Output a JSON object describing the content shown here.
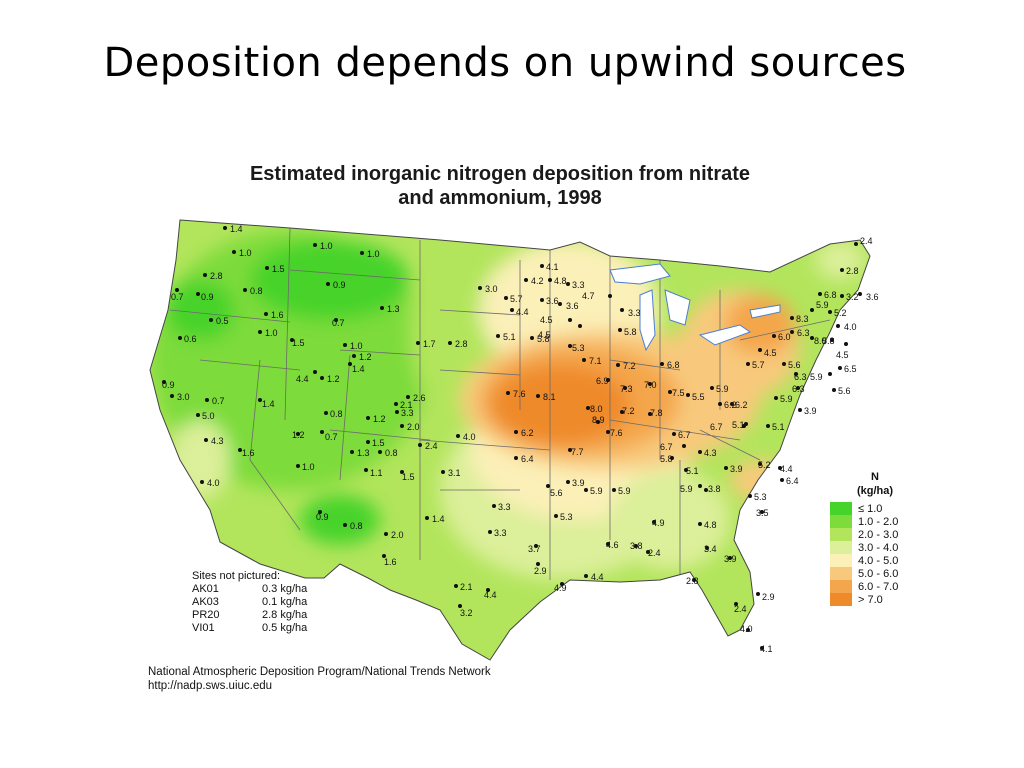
{
  "slide": {
    "title": "Deposition depends on upwind sources"
  },
  "map": {
    "title_line1": "Estimated inorganic nitrogen deposition from nitrate",
    "title_line2": "and ammonium, 1998"
  },
  "legend": {
    "title_line1": "N",
    "title_line2": "(kg/ha)",
    "items": [
      {
        "label": "≤ 1.0",
        "color": "#46d32a"
      },
      {
        "label": "1.0 - 2.0",
        "color": "#7ddb3a"
      },
      {
        "label": "2.0 - 3.0",
        "color": "#b2e55c"
      },
      {
        "label": "3.0 - 4.0",
        "color": "#dcef9a"
      },
      {
        "label": "4.0 - 5.0",
        "color": "#fbf0b8"
      },
      {
        "label": "5.0 - 6.0",
        "color": "#f8c97c"
      },
      {
        "label": "6.0 - 7.0",
        "color": "#f4a64c"
      },
      {
        "label": "> 7.0",
        "color": "#ef8a2a"
      }
    ]
  },
  "not_pictured": {
    "title": "Sites not pictured:",
    "sites": [
      {
        "site": "AK01",
        "value": "0.3 kg/ha"
      },
      {
        "site": "AK03",
        "value": "0.1 kg/ha"
      },
      {
        "site": "PR20",
        "value": "2.8 kg/ha"
      },
      {
        "site": "VI01",
        "value": "0.5 kg/ha"
      }
    ]
  },
  "credit": {
    "line1": "National Atmospheric Deposition Program/National Trends Network",
    "line2": "http://nadp.sws.uiuc.edu"
  },
  "site_labels": [
    "1.4",
    "1.0",
    "1.5",
    "1.0",
    "1.0",
    "2.8",
    "0.8",
    "0.9",
    "0.7",
    "0.9",
    "0.5",
    "1.6",
    "1.0",
    "1.3",
    "0.7",
    "0.6",
    "1.5",
    "1.0",
    "1.2",
    "1.4",
    "1.2",
    "4.4",
    "1.7",
    "2.8",
    "3.0",
    "0.9",
    "3.0",
    "0.7",
    "1.4",
    "5.0",
    "0.8",
    "1.2",
    "2.1",
    "3.3",
    "2.6",
    "2.0",
    "4.3",
    "1.2",
    "0.7",
    "1.5",
    "1.3",
    "0.8",
    "2.4",
    "4.0",
    "1.6",
    "1.0",
    "1.1",
    "1.5",
    "3.1",
    "4.0",
    "0.9",
    "0.8",
    "2.0",
    "1.4",
    "1.6",
    "5.1",
    "5.8",
    "7.6",
    "8.1",
    "6.2",
    "6.4",
    "5.7",
    "4.4",
    "4.2",
    "4.8",
    "4.1",
    "3.3",
    "3.6",
    "3.6",
    "4.7",
    "4.5",
    "3.3",
    "4.5",
    "5.8",
    "5.3",
    "7.1",
    "7.2",
    "6.8",
    "6.9",
    "7.3",
    "7.0",
    "7.5",
    "5.5",
    "5.9",
    "8.0",
    "8.9",
    "7.2",
    "7.8",
    "6.2",
    "7.6",
    "7.7",
    "6.7",
    "6.7",
    "5.8",
    "4.3",
    "5.9",
    "3.9",
    "5.1",
    "5.6",
    "3.9",
    "5.9",
    "5.3",
    "3.3",
    "3.3",
    "3.7",
    "2.9",
    "4.9",
    "4.8",
    "4.6",
    "3.8",
    "2.4",
    "4.4",
    "4.9",
    "3.4",
    "3.9",
    "2.8",
    "2.9",
    "2.4",
    "4.0",
    "4.1",
    "2.1",
    "4.4",
    "3.2",
    "5.1",
    "5.2",
    "4.4",
    "6.4",
    "5.9",
    "3.8",
    "5.3",
    "3.5",
    "6.7",
    "6.2",
    "5.1",
    "3.9",
    "5.9",
    "5.7",
    "4.5",
    "5.6",
    "6.3",
    "6.3",
    "6.0",
    "6.3",
    "8.0",
    "5.8",
    "4.5",
    "6.5",
    "5.9",
    "5.6",
    "5.9",
    "8.3",
    "6.8",
    "5.2",
    "4.0",
    "3.2",
    "3.6",
    "2.8",
    "2.4"
  ]
}
